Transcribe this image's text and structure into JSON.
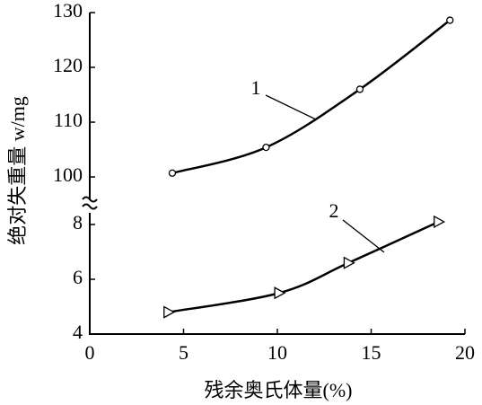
{
  "chart_data": [
    {
      "type": "line",
      "ylabel": "绝对失重量 w/mg",
      "ylim": [
        95.5,
        130
      ],
      "yticks": [
        100,
        110,
        120,
        130
      ],
      "series": [
        {
          "name": "1",
          "color": "#000000",
          "marker": "circle",
          "x": [
            4.4,
            9.4,
            14.4,
            19.2
          ],
          "values": [
            100.7,
            105.4,
            116,
            128.6
          ]
        }
      ]
    },
    {
      "type": "line",
      "xlabel": "残余奥氏体量(%)",
      "xlim": [
        0,
        20
      ],
      "xticks": [
        0,
        5,
        10,
        15,
        20
      ],
      "ylim": [
        4,
        8.5
      ],
      "yticks": [
        4,
        6,
        8
      ],
      "series": [
        {
          "name": "2",
          "color": "#000000",
          "marker": "triangle",
          "x": [
            4.2,
            10.1,
            13.8,
            18.6
          ],
          "values": [
            4.8,
            5.5,
            6.6,
            8.1
          ]
        }
      ]
    }
  ]
}
